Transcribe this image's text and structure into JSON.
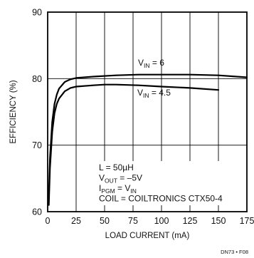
{
  "chart_data": {
    "type": "line",
    "title": "",
    "xlabel": "LOAD CURRENT (mA)",
    "ylabel": "EFFICIENCY (%)",
    "xlim": [
      0,
      175
    ],
    "ylim": [
      60,
      90
    ],
    "xticks": [
      0,
      25,
      50,
      75,
      100,
      125,
      150,
      175
    ],
    "yticks": [
      60,
      70,
      80,
      90
    ],
    "grid": true,
    "series": [
      {
        "name": "VIN = 6",
        "label_main": "V",
        "label_sub": "IN",
        "label_rest": " = 6",
        "x": [
          1,
          2,
          4,
          6,
          8,
          10,
          15,
          20,
          25,
          40,
          60,
          80,
          100,
          125,
          150,
          175
        ],
        "y": [
          62,
          68,
          73.5,
          76.2,
          77.6,
          78.5,
          79.5,
          79.9,
          80.1,
          80.3,
          80.5,
          80.6,
          80.6,
          80.6,
          80.5,
          80.2
        ]
      },
      {
        "name": "VIN = 4.5",
        "label_main": "V",
        "label_sub": "IN",
        "label_rest": " = 4.5",
        "x": [
          1,
          2,
          4,
          6,
          8,
          10,
          15,
          20,
          25,
          40,
          50,
          60,
          80,
          100,
          125,
          150
        ],
        "y": [
          61,
          66.5,
          72,
          74.8,
          76.2,
          77,
          78.1,
          78.6,
          78.8,
          79,
          79.1,
          79.1,
          79,
          78.8,
          78.6,
          78.3
        ]
      }
    ],
    "annotations": [
      {
        "main": "L = 50µH",
        "sub": "",
        "rest": ""
      },
      {
        "main": "V",
        "sub": "OUT",
        "rest": " = –5V"
      },
      {
        "main": "I",
        "sub": "PGM",
        "rest": " = V",
        "sub2": "IN"
      },
      {
        "main": "COIL = COILTRONICS CTX50-4",
        "sub": "",
        "rest": ""
      }
    ],
    "figure_id": "DN73 • F08"
  }
}
